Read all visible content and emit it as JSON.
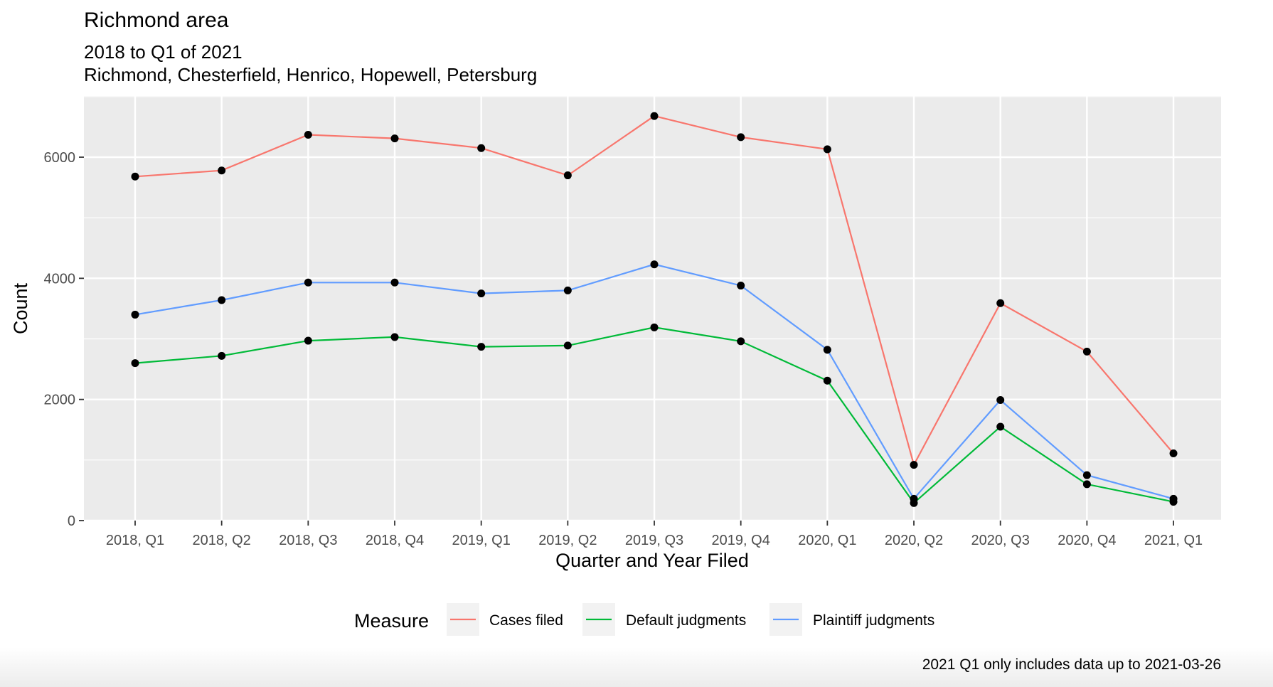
{
  "chart_data": {
    "type": "line",
    "title": "Richmond area",
    "subtitle_lines": [
      "2018 to Q1 of 2021",
      "Richmond, Chesterfield, Henrico, Hopewell, Petersburg"
    ],
    "xlabel": "Quarter and Year Filed",
    "ylabel": "Count",
    "categories": [
      "2018, Q1",
      "2018, Q2",
      "2018, Q3",
      "2018, Q4",
      "2019, Q1",
      "2019, Q2",
      "2019, Q3",
      "2019, Q4",
      "2020, Q1",
      "2020, Q2",
      "2020, Q3",
      "2020, Q4",
      "2021, Q1"
    ],
    "ylim": [
      0,
      7000
    ],
    "yticks": [
      0,
      2000,
      4000,
      6000
    ],
    "yticks_labels": [
      "0",
      "2000",
      "4000",
      "6000"
    ],
    "grid": true,
    "series": [
      {
        "name": "Cases filed",
        "color": "#F8766D",
        "values": [
          5680,
          5780,
          6370,
          6310,
          6150,
          5700,
          6680,
          6330,
          6130,
          920,
          3590,
          2790,
          1110
        ]
      },
      {
        "name": "Default judgments",
        "color": "#00BA38",
        "values": [
          2600,
          2720,
          2970,
          3030,
          2870,
          2890,
          3190,
          2960,
          2310,
          290,
          1550,
          600,
          310
        ]
      },
      {
        "name": "Plaintiff judgments",
        "color": "#619CFF",
        "values": [
          3400,
          3640,
          3930,
          3930,
          3750,
          3800,
          4230,
          3880,
          2820,
          360,
          1990,
          750,
          360
        ]
      }
    ],
    "legend": {
      "title": "Measure",
      "position": "bottom"
    },
    "caption": "2021 Q1 only includes data up to 2021-03-26"
  }
}
